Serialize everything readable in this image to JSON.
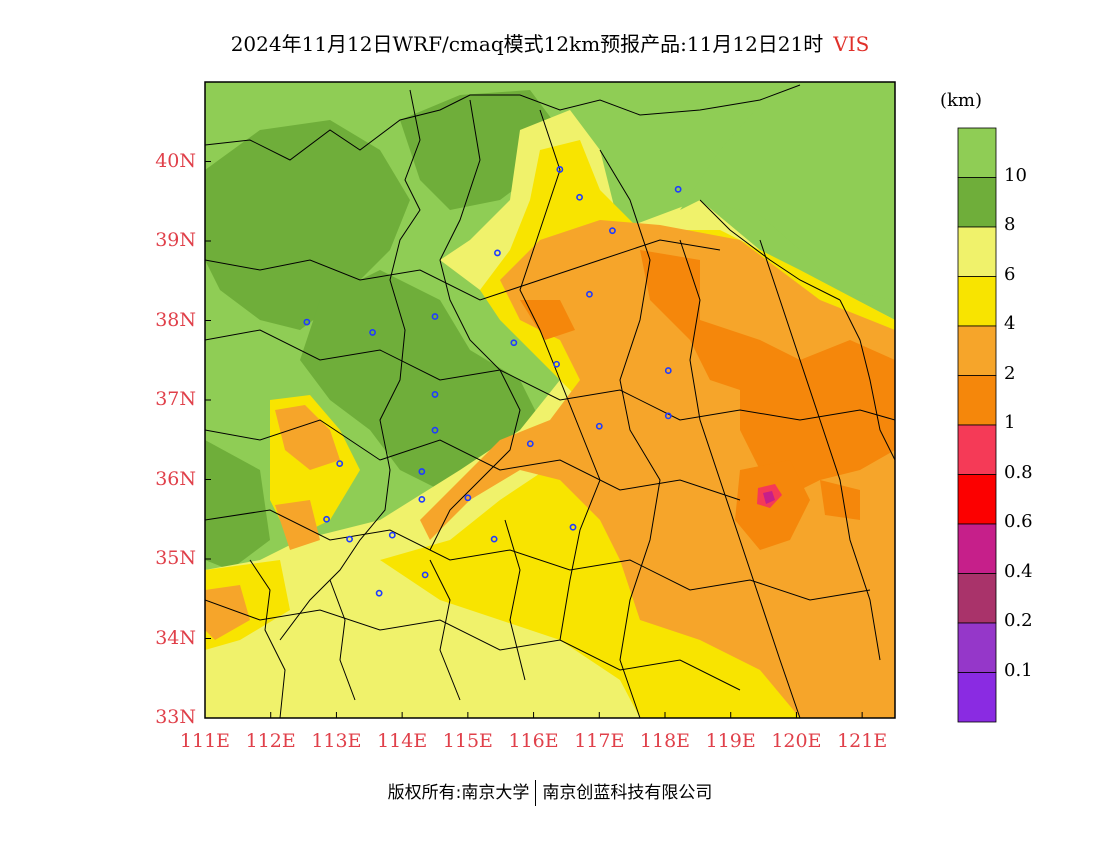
{
  "title": {
    "main": "2024年11月12日WRF/cmaq模式12km预报产品:11月12日21时",
    "variable": "VIS"
  },
  "axes": {
    "latitude_labels": [
      "40N",
      "39N",
      "38N",
      "37N",
      "36N",
      "35N",
      "34N",
      "33N"
    ],
    "longitude_labels": [
      "111E",
      "112E",
      "113E",
      "114E",
      "115E",
      "116E",
      "117E",
      "118E",
      "119E",
      "120E",
      "121E"
    ]
  },
  "legend": {
    "unit": "(km)",
    "labels": [
      "10",
      "8",
      "6",
      "4",
      "2",
      "1",
      "0.8",
      "0.6",
      "0.4",
      "0.2",
      "0.1"
    ],
    "colors": [
      "#8fcd55",
      "#6fae3a",
      "#f0f26b",
      "#f8e400",
      "#f6a52a",
      "#f5870b",
      "#f53a57",
      "#fc0000",
      "#c61f8a",
      "#a9336a",
      "#9537c9",
      "#8a2be2"
    ]
  },
  "map": {
    "city_markers": [
      {
        "lon": 116.4,
        "lat": 39.9
      },
      {
        "lon": 116.7,
        "lat": 39.55
      },
      {
        "lon": 117.2,
        "lat": 39.13
      },
      {
        "lon": 118.2,
        "lat": 39.65
      },
      {
        "lon": 115.45,
        "lat": 38.85
      },
      {
        "lon": 116.85,
        "lat": 38.33
      },
      {
        "lon": 114.5,
        "lat": 38.05
      },
      {
        "lon": 115.7,
        "lat": 37.72
      },
      {
        "lon": 116.35,
        "lat": 37.45
      },
      {
        "lon": 112.55,
        "lat": 37.98
      },
      {
        "lon": 113.55,
        "lat": 37.85
      },
      {
        "lon": 114.5,
        "lat": 37.07
      },
      {
        "lon": 114.5,
        "lat": 36.62
      },
      {
        "lon": 114.3,
        "lat": 36.1
      },
      {
        "lon": 113.05,
        "lat": 36.2
      },
      {
        "lon": 112.85,
        "lat": 35.5
      },
      {
        "lon": 113.2,
        "lat": 35.25
      },
      {
        "lon": 113.85,
        "lat": 35.3
      },
      {
        "lon": 114.3,
        "lat": 35.75
      },
      {
        "lon": 115.0,
        "lat": 35.77
      },
      {
        "lon": 115.95,
        "lat": 36.45
      },
      {
        "lon": 117.0,
        "lat": 36.67
      },
      {
        "lon": 118.05,
        "lat": 36.8
      },
      {
        "lon": 118.05,
        "lat": 37.37
      },
      {
        "lon": 115.4,
        "lat": 35.25
      },
      {
        "lon": 116.6,
        "lat": 35.4
      },
      {
        "lon": 114.35,
        "lat": 34.8
      },
      {
        "lon": 113.65,
        "lat": 34.57
      }
    ]
  },
  "footer": {
    "left": "版权所有:南京大学",
    "right": "南京创蓝科技有限公司"
  }
}
